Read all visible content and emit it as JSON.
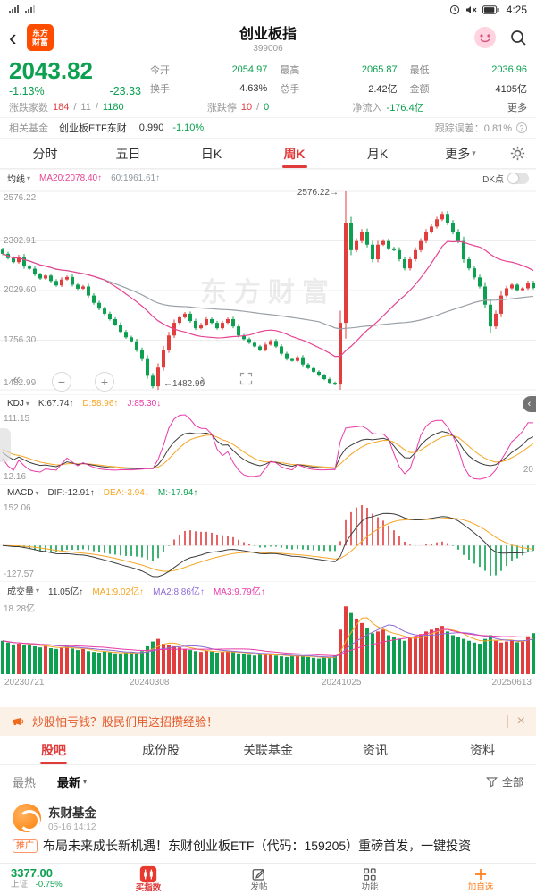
{
  "status_bar": {
    "time": "4:25"
  },
  "glyphs": {
    "back": "‹",
    "chev_right": "›",
    "dropdown": "▾",
    "close": "×",
    "pan_left": "«",
    "zoom_out": "−",
    "zoom_in": "+",
    "pan_right": "›",
    "collapse": "‹",
    "info": "?"
  },
  "header": {
    "logo_top": "东方",
    "logo_bottom": "财富",
    "title": "创业板指",
    "code": "399006"
  },
  "quote": {
    "price": "2043.82",
    "change_pct": "-1.13%",
    "change": "-23.33",
    "stats": [
      {
        "label": "今开",
        "value": "2054.97"
      },
      {
        "label": "最高",
        "value": "2065.87"
      },
      {
        "label": "最低",
        "value": "2036.96"
      },
      {
        "label": "换手",
        "value": "4.63%"
      },
      {
        "label": "总手",
        "value": "2.42亿"
      },
      {
        "label": "金额",
        "value": "4105亿"
      }
    ],
    "updown_label": "涨跌家数",
    "up_count": "184",
    "flat_count": "11",
    "down_count": "1180",
    "sep": "/",
    "limit_label": "涨跌停",
    "limit_up": "10",
    "limit_down": "0",
    "inflow_label": "净流入",
    "inflow_value": "-176.4亿",
    "more": "更多"
  },
  "fund_bar": {
    "label": "相关基金",
    "name": "创业板ETF东财",
    "price": "0.990",
    "change": "-1.10%",
    "tracking": "跟踪误差：0.81%"
  },
  "period_tabs": {
    "items": [
      "分时",
      "五日",
      "日K",
      "周K",
      "月K",
      "更多"
    ]
  },
  "main_legend": {
    "name": "均线",
    "ma20": "MA20:2078.40↑",
    "ma60": "60:1961.61↑",
    "dk": "DK点"
  },
  "kdj_legend": {
    "name": "KDJ",
    "k": "K:67.74↑",
    "d": "D:58.96↑",
    "j": "J:85.30↓"
  },
  "macd_legend": {
    "name": "MACD",
    "dif": "DIF:-12.91↑",
    "dea": "DEA:-3.94↓",
    "m": "M:-17.94↑"
  },
  "vol_legend": {
    "name": "成交量",
    "vol": "11.05亿↑",
    "ma1": "MA1:9.02亿↑",
    "ma2": "MA2:8.86亿↑",
    "ma3": "MA3:9.79亿↑"
  },
  "axis": {
    "main_ticks": [
      "2576.22",
      "2302.91",
      "2029.60",
      "1756.30",
      "1482.99"
    ],
    "kdj_top": "111.15",
    "kdj_bottom": "12.16",
    "kdj_right": "20",
    "macd_top": "152.06",
    "macd_bottom": "-127.57",
    "vol_top": "18.28亿",
    "dates": [
      "20230721",
      "20240308",
      "20241025",
      "20250613"
    ]
  },
  "annotations": {
    "high": "2576.22→",
    "low": "←1482.99"
  },
  "watermark": "东方财富",
  "chart_data": {
    "type": "candlestick",
    "title": "创业板指 399006 周K",
    "ylim": [
      1482.99,
      2576.22
    ],
    "y_ticks": [
      2576.22,
      2302.91,
      2029.6,
      1756.3,
      1482.99
    ],
    "x_date_labels": [
      "20230721",
      "20240308",
      "20241025",
      "20250613"
    ],
    "date_positions": [
      0,
      28,
      64,
      99
    ],
    "first_open": 2255,
    "high_index": 64,
    "low_index": 29,
    "closes": [
      2232,
      2208,
      2186,
      2215,
      2162,
      2150,
      2118,
      2096,
      2112,
      2082,
      2058,
      2090,
      2104,
      2062,
      2040,
      2052,
      2002,
      1962,
      1930,
      1902,
      1872,
      1842,
      1802,
      1772,
      1750,
      1702,
      1652,
      1560,
      1502,
      1605,
      1702,
      1782,
      1852,
      1882,
      1902,
      1862,
      1822,
      1842,
      1872,
      1852,
      1822,
      1852,
      1872,
      1832,
      1782,
      1762,
      1742,
      1722,
      1702,
      1732,
      1752,
      1722,
      1682,
      1652,
      1642,
      1662,
      1622,
      1602,
      1582,
      1562,
      1542,
      1522,
      1512,
      1852,
      2402,
      2252,
      2302,
      2352,
      2282,
      2202,
      2282,
      2302,
      2262,
      2252,
      2202,
      2152,
      2202,
      2252,
      2302,
      2352,
      2382,
      2422,
      2452,
      2402,
      2352,
      2302,
      2202,
      2152,
      2102,
      2052,
      1952,
      1832,
      1902,
      2002,
      2042,
      2062,
      2032,
      2042,
      2072,
      2043.82
    ],
    "volumes": [
      9.0,
      8.5,
      8.0,
      8.2,
      7.8,
      8.0,
      7.5,
      7.2,
      7.6,
      7.0,
      6.8,
      7.2,
      7.5,
      6.9,
      6.5,
      6.8,
      6.2,
      6.0,
      5.8,
      6.1,
      5.9,
      5.6,
      5.4,
      5.8,
      6.0,
      5.5,
      6.2,
      7.5,
      8.8,
      9.5,
      8.2,
      7.8,
      7.5,
      7.2,
      6.8,
      6.5,
      6.2,
      6.0,
      6.3,
      6.1,
      5.8,
      6.0,
      6.2,
      5.9,
      5.6,
      5.4,
      5.2,
      5.0,
      5.3,
      5.5,
      5.2,
      5.0,
      4.8,
      4.6,
      4.9,
      5.1,
      4.8,
      4.6,
      4.4,
      4.2,
      4.5,
      4.3,
      5.0,
      12.0,
      18.28,
      16.5,
      15.0,
      13.8,
      12.5,
      11.0,
      11.5,
      12.0,
      10.5,
      10.0,
      9.5,
      9.0,
      9.8,
      10.2,
      10.8,
      11.5,
      12.0,
      12.5,
      13.0,
      11.5,
      10.5,
      10.0,
      9.5,
      9.0,
      8.5,
      8.2,
      9.5,
      10.5,
      9.0,
      8.5,
      8.8,
      9.2,
      8.6,
      9.0,
      10.2,
      11.05
    ],
    "overrides": {
      "29": {
        "low": 1482.99
      },
      "64": {
        "high": 2576.22
      },
      "91": {
        "low": 1795
      }
    },
    "indicators": {
      "ma": {
        "windows": [
          20,
          60
        ],
        "last": {
          "ma20": 2078.4,
          "ma60": 1961.61
        }
      },
      "kdj": {
        "k": 67.74,
        "d": 58.96,
        "j": 85.3,
        "axis": [
          12.16,
          111.15
        ]
      },
      "macd": {
        "dif": -12.91,
        "dea": -3.94,
        "m": -17.94,
        "axis": [
          -127.57,
          152.06
        ]
      },
      "volume": {
        "current": 11.05,
        "ma1": 9.02,
        "ma2": 8.86,
        "ma3": 9.79,
        "axis_max": 18.28
      }
    }
  },
  "ad": {
    "text": "炒股怕亏钱？股民们用这招攒经验！"
  },
  "section_tabs": {
    "items": [
      "股吧",
      "成份股",
      "关联基金",
      "资讯",
      "资料"
    ]
  },
  "filter_bar": {
    "hot": "最热",
    "newest": "最新",
    "all": "全部"
  },
  "post": {
    "author": "东财基金",
    "time": "05-16 14:12",
    "tag": "推广",
    "content": "布局未来成长新机遇！东财创业板ETF（代码：159205）重磅首发，一键投资"
  },
  "bottom_nav": {
    "index_value": "3377.00",
    "index_name": "上证",
    "index_change": "-0.75%",
    "items": [
      "买指数",
      "发帖",
      "功能",
      "加自选"
    ]
  },
  "colors": {
    "green": "#0ca050",
    "red": "#e23e3e",
    "accent": "#e03b3b",
    "orange": "#ff7d1a",
    "ma20": "#e84393",
    "ma60": "#9aa0a6",
    "kdj_k": "#3c3c3c",
    "kdj_d": "#f5a623",
    "kdj_j": "#e93aa8",
    "macd_dea": "#f5a623",
    "vol_ma1": "#f5a623",
    "vol_ma2": "#8e6bd8",
    "vol_ma3": "#e93aa8",
    "grid": "#ededed"
  }
}
